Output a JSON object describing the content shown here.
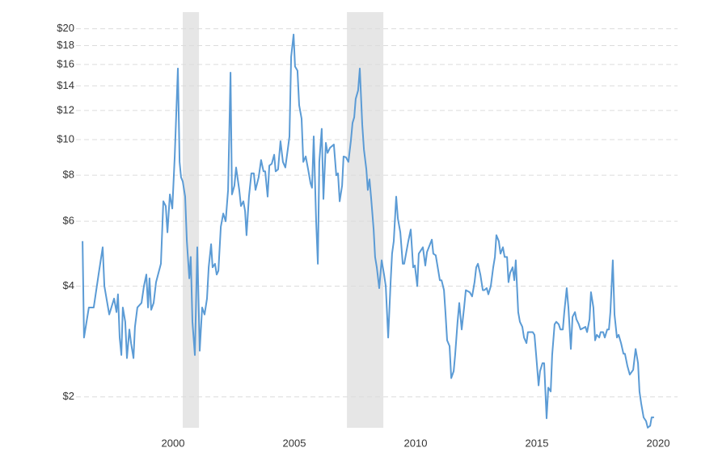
{
  "chart_data": {
    "type": "line",
    "log_y": true,
    "grid": true,
    "color": "#5b9bd5",
    "recession_color": "#e6e6e6",
    "xlim": [
      1996,
      2020.8
    ],
    "ylim": [
      1.6,
      22.2
    ],
    "xticks": [
      2000,
      2005,
      2010,
      2015,
      2020
    ],
    "yticks": [
      {
        "value": 2,
        "label": "$2"
      },
      {
        "value": 4,
        "label": "$4"
      },
      {
        "value": 6,
        "label": "$6"
      },
      {
        "value": 8,
        "label": "$8"
      },
      {
        "value": 10,
        "label": "$10"
      },
      {
        "value": 12,
        "label": "$12"
      },
      {
        "value": 14,
        "label": "$14"
      },
      {
        "value": 16,
        "label": "$16"
      },
      {
        "value": 18,
        "label": "$18"
      },
      {
        "value": 20,
        "label": "$20"
      }
    ],
    "recessions": [
      [
        2000.4,
        2001.07
      ],
      [
        2007.17,
        2008.67
      ]
    ],
    "x": [
      1996.27,
      1996.33,
      1996.53,
      1996.73,
      1996.93,
      1997.1,
      1997.17,
      1997.37,
      1997.57,
      1997.67,
      1997.73,
      1997.8,
      1997.87,
      1997.93,
      1998.03,
      1998.1,
      1998.2,
      1998.27,
      1998.37,
      1998.43,
      1998.53,
      1998.7,
      1998.8,
      1998.9,
      1998.97,
      1999.03,
      1999.1,
      1999.2,
      1999.3,
      1999.5,
      1999.6,
      1999.7,
      1999.77,
      1999.87,
      1999.97,
      2000.07,
      2000.2,
      2000.27,
      2000.33,
      2000.4,
      2000.5,
      2000.57,
      2000.67,
      2000.73,
      2000.8,
      2000.9,
      2001.0,
      2001.1,
      2001.2,
      2001.3,
      2001.4,
      2001.47,
      2001.57,
      2001.63,
      2001.73,
      2001.8,
      2001.87,
      2001.97,
      2002.07,
      2002.17,
      2002.27,
      2002.37,
      2002.43,
      2002.53,
      2002.6,
      2002.73,
      2002.8,
      2002.9,
      2002.97,
      2003.03,
      2003.13,
      2003.23,
      2003.33,
      2003.4,
      2003.53,
      2003.63,
      2003.73,
      2003.8,
      2003.9,
      2003.97,
      2004.07,
      2004.17,
      2004.23,
      2004.33,
      2004.43,
      2004.53,
      2004.63,
      2004.73,
      2004.8,
      2004.87,
      2004.97,
      2005.03,
      2005.13,
      2005.2,
      2005.3,
      2005.37,
      2005.47,
      2005.57,
      2005.67,
      2005.73,
      2005.8,
      2005.9,
      2005.97,
      2006.03,
      2006.13,
      2006.2,
      2006.3,
      2006.37,
      2006.47,
      2006.63,
      2006.73,
      2006.8,
      2006.87,
      2006.97,
      2007.03,
      2007.13,
      2007.23,
      2007.33,
      2007.4,
      2007.47,
      2007.53,
      2007.63,
      2007.7,
      2007.8,
      2007.87,
      2007.97,
      2008.03,
      2008.1,
      2008.17,
      2008.27,
      2008.33,
      2008.4,
      2008.5,
      2008.6,
      2008.7,
      2008.77,
      2008.87,
      2008.97,
      2009.03,
      2009.1,
      2009.2,
      2009.27,
      2009.37,
      2009.47,
      2009.53,
      2009.7,
      2009.8,
      2009.9,
      2009.97,
      2010.07,
      2010.13,
      2010.3,
      2010.4,
      2010.47,
      2010.67,
      2010.73,
      2010.83,
      2011.0,
      2011.07,
      2011.17,
      2011.23,
      2011.3,
      2011.4,
      2011.47,
      2011.57,
      2011.63,
      2011.73,
      2011.8,
      2011.9,
      2012.0,
      2012.07,
      2012.23,
      2012.33,
      2012.43,
      2012.5,
      2012.57,
      2012.67,
      2012.77,
      2012.83,
      2012.93,
      2013.0,
      2013.1,
      2013.2,
      2013.27,
      2013.33,
      2013.43,
      2013.5,
      2013.6,
      2013.67,
      2013.77,
      2013.83,
      2013.9,
      2014.0,
      2014.07,
      2014.13,
      2014.23,
      2014.3,
      2014.4,
      2014.47,
      2014.57,
      2014.63,
      2014.83,
      2014.9,
      2014.97,
      2015.07,
      2015.13,
      2015.23,
      2015.3,
      2015.4,
      2015.47,
      2015.57,
      2015.63,
      2015.73,
      2015.8,
      2015.9,
      2015.97,
      2016.07,
      2016.13,
      2016.23,
      2016.3,
      2016.4,
      2016.47,
      2016.57,
      2016.63,
      2016.73,
      2016.8,
      2017.0,
      2017.07,
      2017.17,
      2017.23,
      2017.33,
      2017.4,
      2017.47,
      2017.57,
      2017.63,
      2017.73,
      2017.8,
      2017.9,
      2017.97,
      2018.03,
      2018.13,
      2018.2,
      2018.3,
      2018.37,
      2018.47,
      2018.57,
      2018.63,
      2018.73,
      2018.83,
      2018.97,
      2019.07,
      2019.17,
      2019.23,
      2019.3,
      2019.4,
      2019.5,
      2019.57,
      2019.67,
      2019.73,
      2019.83
    ],
    "values": [
      5.3,
      2.9,
      3.5,
      3.5,
      4.3,
      5.1,
      4.0,
      3.35,
      3.7,
      3.4,
      3.8,
      2.9,
      2.6,
      3.5,
      3.2,
      2.55,
      3.05,
      2.8,
      2.55,
      3.1,
      3.5,
      3.6,
      4.0,
      4.3,
      3.5,
      4.2,
      3.45,
      3.6,
      4.1,
      4.6,
      6.8,
      6.6,
      5.6,
      7.1,
      6.5,
      9.0,
      15.6,
      8.7,
      7.9,
      7.7,
      7.0,
      5.3,
      4.2,
      4.8,
      3.2,
      2.6,
      5.1,
      2.67,
      3.5,
      3.35,
      3.7,
      4.5,
      5.2,
      4.5,
      4.6,
      4.3,
      4.4,
      5.8,
      6.3,
      6.0,
      7.3,
      15.2,
      7.1,
      7.5,
      8.4,
      7.3,
      6.6,
      6.8,
      6.4,
      5.5,
      7.0,
      8.1,
      8.1,
      7.3,
      7.9,
      8.8,
      8.2,
      8.2,
      7.0,
      8.5,
      8.6,
      9.1,
      8.2,
      8.3,
      9.9,
      8.7,
      8.4,
      9.4,
      10.2,
      16.8,
      19.3,
      15.8,
      15.4,
      12.4,
      11.4,
      8.7,
      9.0,
      8.3,
      7.6,
      7.4,
      10.2,
      6.0,
      4.6,
      8.7,
      10.7,
      6.9,
      9.8,
      9.2,
      9.5,
      9.7,
      8.0,
      8.1,
      6.8,
      7.5,
      9.0,
      8.95,
      8.7,
      9.9,
      11.1,
      11.5,
      12.9,
      13.6,
      15.6,
      11.0,
      9.4,
      8.3,
      7.3,
      7.8,
      6.9,
      5.7,
      4.8,
      4.5,
      3.95,
      4.7,
      4.3,
      4.0,
      2.9,
      4.1,
      4.9,
      5.3,
      7.0,
      6.1,
      5.6,
      4.6,
      4.6,
      5.3,
      5.7,
      4.5,
      4.55,
      4.0,
      4.9,
      5.1,
      4.55,
      4.95,
      5.35,
      4.9,
      4.85,
      4.15,
      4.15,
      3.9,
      3.4,
      2.85,
      2.75,
      2.25,
      2.35,
      2.6,
      3.2,
      3.6,
      3.05,
      3.5,
      3.9,
      3.85,
      3.75,
      4.1,
      4.5,
      4.6,
      4.3,
      3.9,
      3.9,
      3.95,
      3.8,
      4.0,
      4.5,
      4.8,
      5.5,
      5.3,
      4.9,
      5.1,
      4.8,
      4.8,
      4.1,
      4.35,
      4.5,
      4.15,
      4.7,
      3.4,
      3.2,
      3.1,
      2.9,
      2.8,
      3.0,
      3.0,
      2.95,
      2.6,
      2.15,
      2.35,
      2.47,
      2.47,
      1.75,
      2.12,
      2.07,
      2.6,
      3.15,
      3.2,
      3.15,
      3.05,
      3.05,
      3.4,
      3.95,
      3.5,
      2.7,
      3.3,
      3.4,
      3.25,
      3.15,
      3.05,
      3.1,
      3.0,
      3.25,
      3.85,
      3.5,
      2.85,
      2.95,
      2.9,
      3.0,
      3.0,
      2.9,
      3.05,
      3.05,
      3.4,
      4.7,
      3.35,
      2.9,
      2.95,
      2.8,
      2.62,
      2.62,
      2.43,
      2.3,
      2.37,
      2.7,
      2.47,
      2.07,
      1.92,
      1.76,
      1.72,
      1.65,
      1.67,
      1.76,
      1.76
    ]
  }
}
